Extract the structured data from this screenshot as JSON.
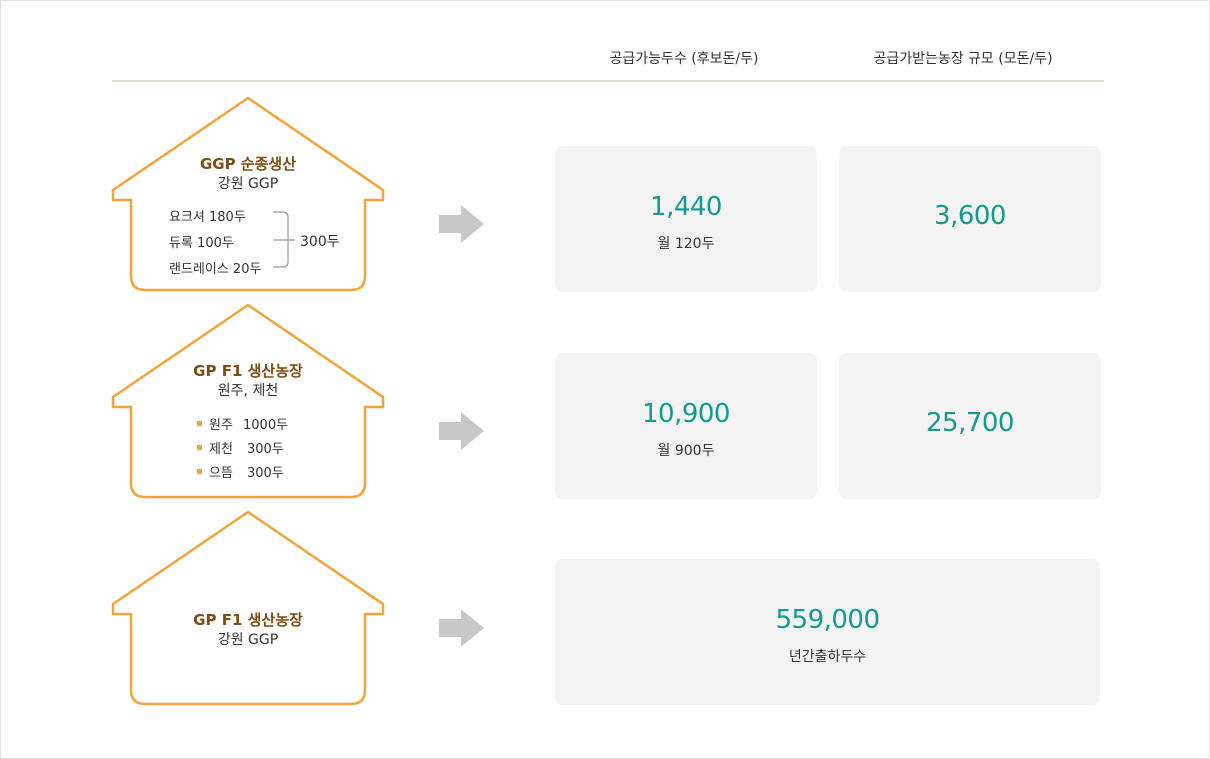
{
  "header": {
    "col1": "공급가능두수 (후보돈/두)",
    "col2": "공급가받는농장 규모 (모돈/두)"
  },
  "houses": [
    {
      "title": "GGP 순종생산",
      "subtitle": "강원 GGP",
      "items": [
        "요크셔 180두",
        "듀록 100두",
        "랜드레이스 20두"
      ],
      "total": "300두"
    },
    {
      "title": "GP F1 생산농장",
      "subtitle": "원주, 제천",
      "items": [
        {
          "name": "원주",
          "count": "1000두"
        },
        {
          "name": "제천",
          "count": "300두"
        },
        {
          "name": "으뜸",
          "count": "300두"
        }
      ]
    },
    {
      "title": "GP F1 생산농장",
      "subtitle": "강원 GGP"
    }
  ],
  "rows": [
    {
      "supply": "1,440",
      "supply_sub": "월 120두",
      "farm_scale": "3,600"
    },
    {
      "supply": "10,900",
      "supply_sub": "월 900두",
      "farm_scale": "25,700"
    },
    {
      "total": "559,000",
      "total_sub": "년간출하두수"
    }
  ],
  "colors": {
    "house_stroke": "#f2a33a",
    "house_title": "#7a4d12",
    "value": "#149a8c",
    "box_bg": "#f3f3f3",
    "arrow": "#c8c8c8"
  }
}
